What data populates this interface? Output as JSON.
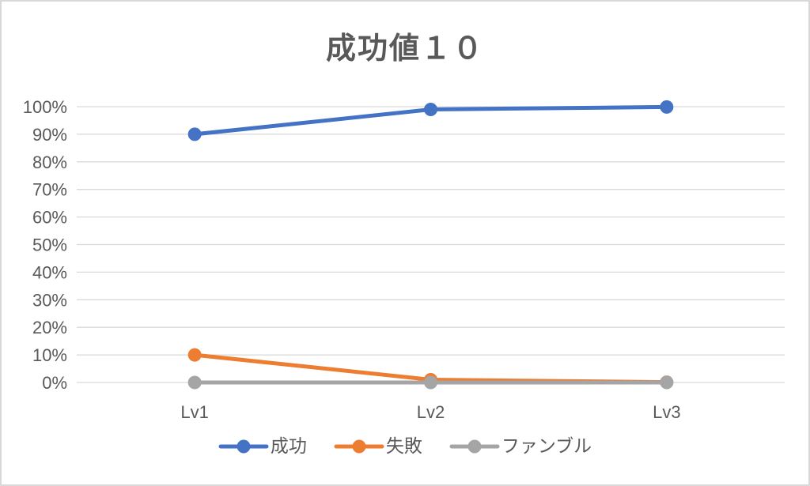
{
  "chart_data": {
    "type": "line",
    "title": "成功値１０",
    "categories": [
      "Lv1",
      "Lv2",
      "Lv3"
    ],
    "series": [
      {
        "name": "成功",
        "color": "#4472C4",
        "values": [
          90,
          99,
          99.9
        ]
      },
      {
        "name": "失敗",
        "color": "#ED7D31",
        "values": [
          10,
          1,
          0.1
        ]
      },
      {
        "name": "ファンブル",
        "color": "#A5A5A5",
        "values": [
          0,
          0,
          0
        ]
      }
    ],
    "xlabel": "",
    "ylabel": "",
    "ylim": [
      0,
      100
    ],
    "ytick_step": 10,
    "ytick_format": "percent",
    "grid": true,
    "legend_position": "bottom"
  },
  "colors": {
    "title": "#595959",
    "axis_label": "#595959",
    "gridline": "#d9d9d9",
    "border": "#d9d9d9",
    "background": "#ffffff"
  }
}
